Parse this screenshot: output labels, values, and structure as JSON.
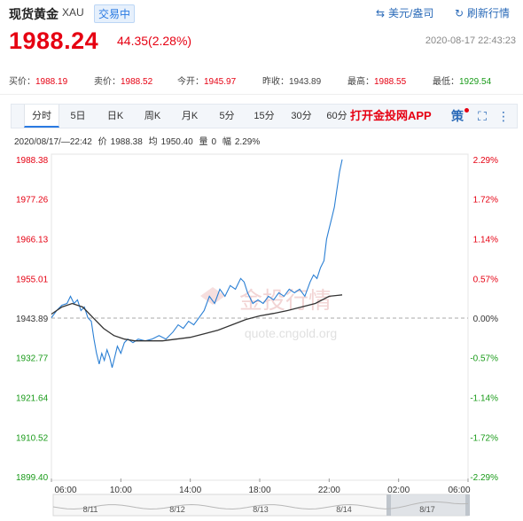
{
  "header": {
    "name": "现货黄金",
    "code": "XAU",
    "badge": "交易中",
    "currency_link": "美元/盎司",
    "refresh_link": "刷新行情"
  },
  "quote": {
    "price": "1988.24",
    "change": "44.35(2.28%)",
    "datetime": "2020-08-17 22:43:23",
    "buy_label": "买价：",
    "buy": "1988.19",
    "sell_label": "卖价：",
    "sell": "1988.52",
    "open_label": "今开：",
    "open": "1945.97",
    "prev_label": "昨收：",
    "prev": "1943.89",
    "high_label": "最高：",
    "high": "1988.55",
    "low_label": "最低：",
    "low": "1929.54"
  },
  "tabs": [
    "分时",
    "5日",
    "日K",
    "周K",
    "月K",
    "5分",
    "15分",
    "30分",
    "60分"
  ],
  "active_tab": "分时",
  "app_link": "打开金投网APP",
  "toolbar_icons": [
    "策",
    "⛶",
    "⋮"
  ],
  "info": {
    "time": "2020/08/17/—22:42",
    "price_label": "价",
    "price": "1988.38",
    "avg_label": "均",
    "avg": "1950.40",
    "vol_label": "量",
    "vol": "0",
    "amp_label": "幅",
    "amp": "2.29%"
  },
  "watermark": {
    "cn": "金投行情",
    "url": "quote.cngold.org"
  },
  "colors": {
    "up": "#e60012",
    "down": "#1a9b1a",
    "price_line": "#2a7fd4",
    "avg_line": "#333333",
    "accent": "#2a7ae2"
  },
  "chart_data": {
    "type": "line",
    "title": "",
    "xlabel": "",
    "ylabel": "",
    "ylim": [
      1899.4,
      1988.38
    ],
    "reference": 1943.89,
    "left_ticks": [
      "1988.38",
      "1977.26",
      "1966.13",
      "1955.01",
      "1943.89",
      "1932.77",
      "1921.64",
      "1910.52",
      "1899.40"
    ],
    "left_tick_values": [
      1988.38,
      1977.26,
      1966.13,
      1955.01,
      1943.89,
      1932.77,
      1921.64,
      1910.52,
      1899.4
    ],
    "right_ticks": [
      "2.29%",
      "1.72%",
      "1.14%",
      "0.57%",
      "0.00%",
      "-0.57%",
      "-1.14%",
      "-1.72%",
      "-2.29%"
    ],
    "x_ticks": [
      "06:00",
      "10:00",
      "14:00",
      "18:00",
      "22:00",
      "02:00",
      "06:00"
    ],
    "x_tick_hours": [
      0,
      4,
      8,
      12,
      16,
      20,
      24
    ],
    "x_range_hours": [
      0,
      24
    ],
    "grid": false,
    "series": [
      {
        "values_role": "price",
        "points": [
          [
            0,
            1944
          ],
          [
            0.3,
            1946
          ],
          [
            0.6,
            1947.5
          ],
          [
            0.9,
            1948
          ],
          [
            1.1,
            1950
          ],
          [
            1.3,
            1948
          ],
          [
            1.5,
            1949
          ],
          [
            1.7,
            1946
          ],
          [
            1.9,
            1947
          ],
          [
            2.1,
            1944
          ],
          [
            2.3,
            1943
          ],
          [
            2.45,
            1938
          ],
          [
            2.6,
            1934
          ],
          [
            2.75,
            1931
          ],
          [
            2.9,
            1934
          ],
          [
            3.05,
            1932
          ],
          [
            3.2,
            1935
          ],
          [
            3.35,
            1933
          ],
          [
            3.5,
            1930
          ],
          [
            3.65,
            1933
          ],
          [
            3.8,
            1936
          ],
          [
            4.0,
            1934
          ],
          [
            4.2,
            1937
          ],
          [
            4.4,
            1938
          ],
          [
            4.7,
            1937
          ],
          [
            5.0,
            1938
          ],
          [
            5.4,
            1937.5
          ],
          [
            5.8,
            1938
          ],
          [
            6.2,
            1939
          ],
          [
            6.6,
            1938
          ],
          [
            7.0,
            1940
          ],
          [
            7.3,
            1942
          ],
          [
            7.6,
            1941
          ],
          [
            7.9,
            1943
          ],
          [
            8.2,
            1942
          ],
          [
            8.5,
            1944
          ],
          [
            8.8,
            1946
          ],
          [
            9.1,
            1950
          ],
          [
            9.4,
            1948
          ],
          [
            9.7,
            1952
          ],
          [
            10.0,
            1950
          ],
          [
            10.3,
            1953
          ],
          [
            10.6,
            1952
          ],
          [
            10.9,
            1955
          ],
          [
            11.1,
            1954
          ],
          [
            11.3,
            1951
          ],
          [
            11.6,
            1948
          ],
          [
            11.9,
            1949
          ],
          [
            12.2,
            1948
          ],
          [
            12.5,
            1950
          ],
          [
            12.8,
            1949
          ],
          [
            13.1,
            1951
          ],
          [
            13.4,
            1950
          ],
          [
            13.7,
            1952
          ],
          [
            14.0,
            1951
          ],
          [
            14.3,
            1952
          ],
          [
            14.6,
            1950
          ],
          [
            14.9,
            1954
          ],
          [
            15.1,
            1956
          ],
          [
            15.3,
            1955
          ],
          [
            15.5,
            1958
          ],
          [
            15.7,
            1960
          ],
          [
            15.85,
            1966
          ],
          [
            16.0,
            1969
          ],
          [
            16.15,
            1972
          ],
          [
            16.3,
            1975
          ],
          [
            16.45,
            1980
          ],
          [
            16.6,
            1985
          ],
          [
            16.75,
            1988.38
          ]
        ]
      },
      {
        "values_role": "average",
        "points": [
          [
            0,
            1945
          ],
          [
            0.6,
            1947
          ],
          [
            1.2,
            1948
          ],
          [
            1.8,
            1947
          ],
          [
            2.4,
            1944
          ],
          [
            3.0,
            1941
          ],
          [
            3.6,
            1939
          ],
          [
            4.2,
            1938
          ],
          [
            4.8,
            1937.5
          ],
          [
            5.6,
            1937.5
          ],
          [
            6.4,
            1937.5
          ],
          [
            7.2,
            1938
          ],
          [
            8.0,
            1938.5
          ],
          [
            8.8,
            1939.5
          ],
          [
            9.6,
            1940.5
          ],
          [
            10.4,
            1942
          ],
          [
            11.2,
            1943.5
          ],
          [
            12.0,
            1944.5
          ],
          [
            12.8,
            1945.2
          ],
          [
            13.6,
            1946
          ],
          [
            14.4,
            1947
          ],
          [
            15.2,
            1948
          ],
          [
            16.0,
            1950
          ],
          [
            16.75,
            1950.4
          ]
        ]
      }
    ],
    "overview_labels": [
      "8/11",
      "8/12",
      "8/13",
      "8/14",
      "8/17"
    ]
  }
}
